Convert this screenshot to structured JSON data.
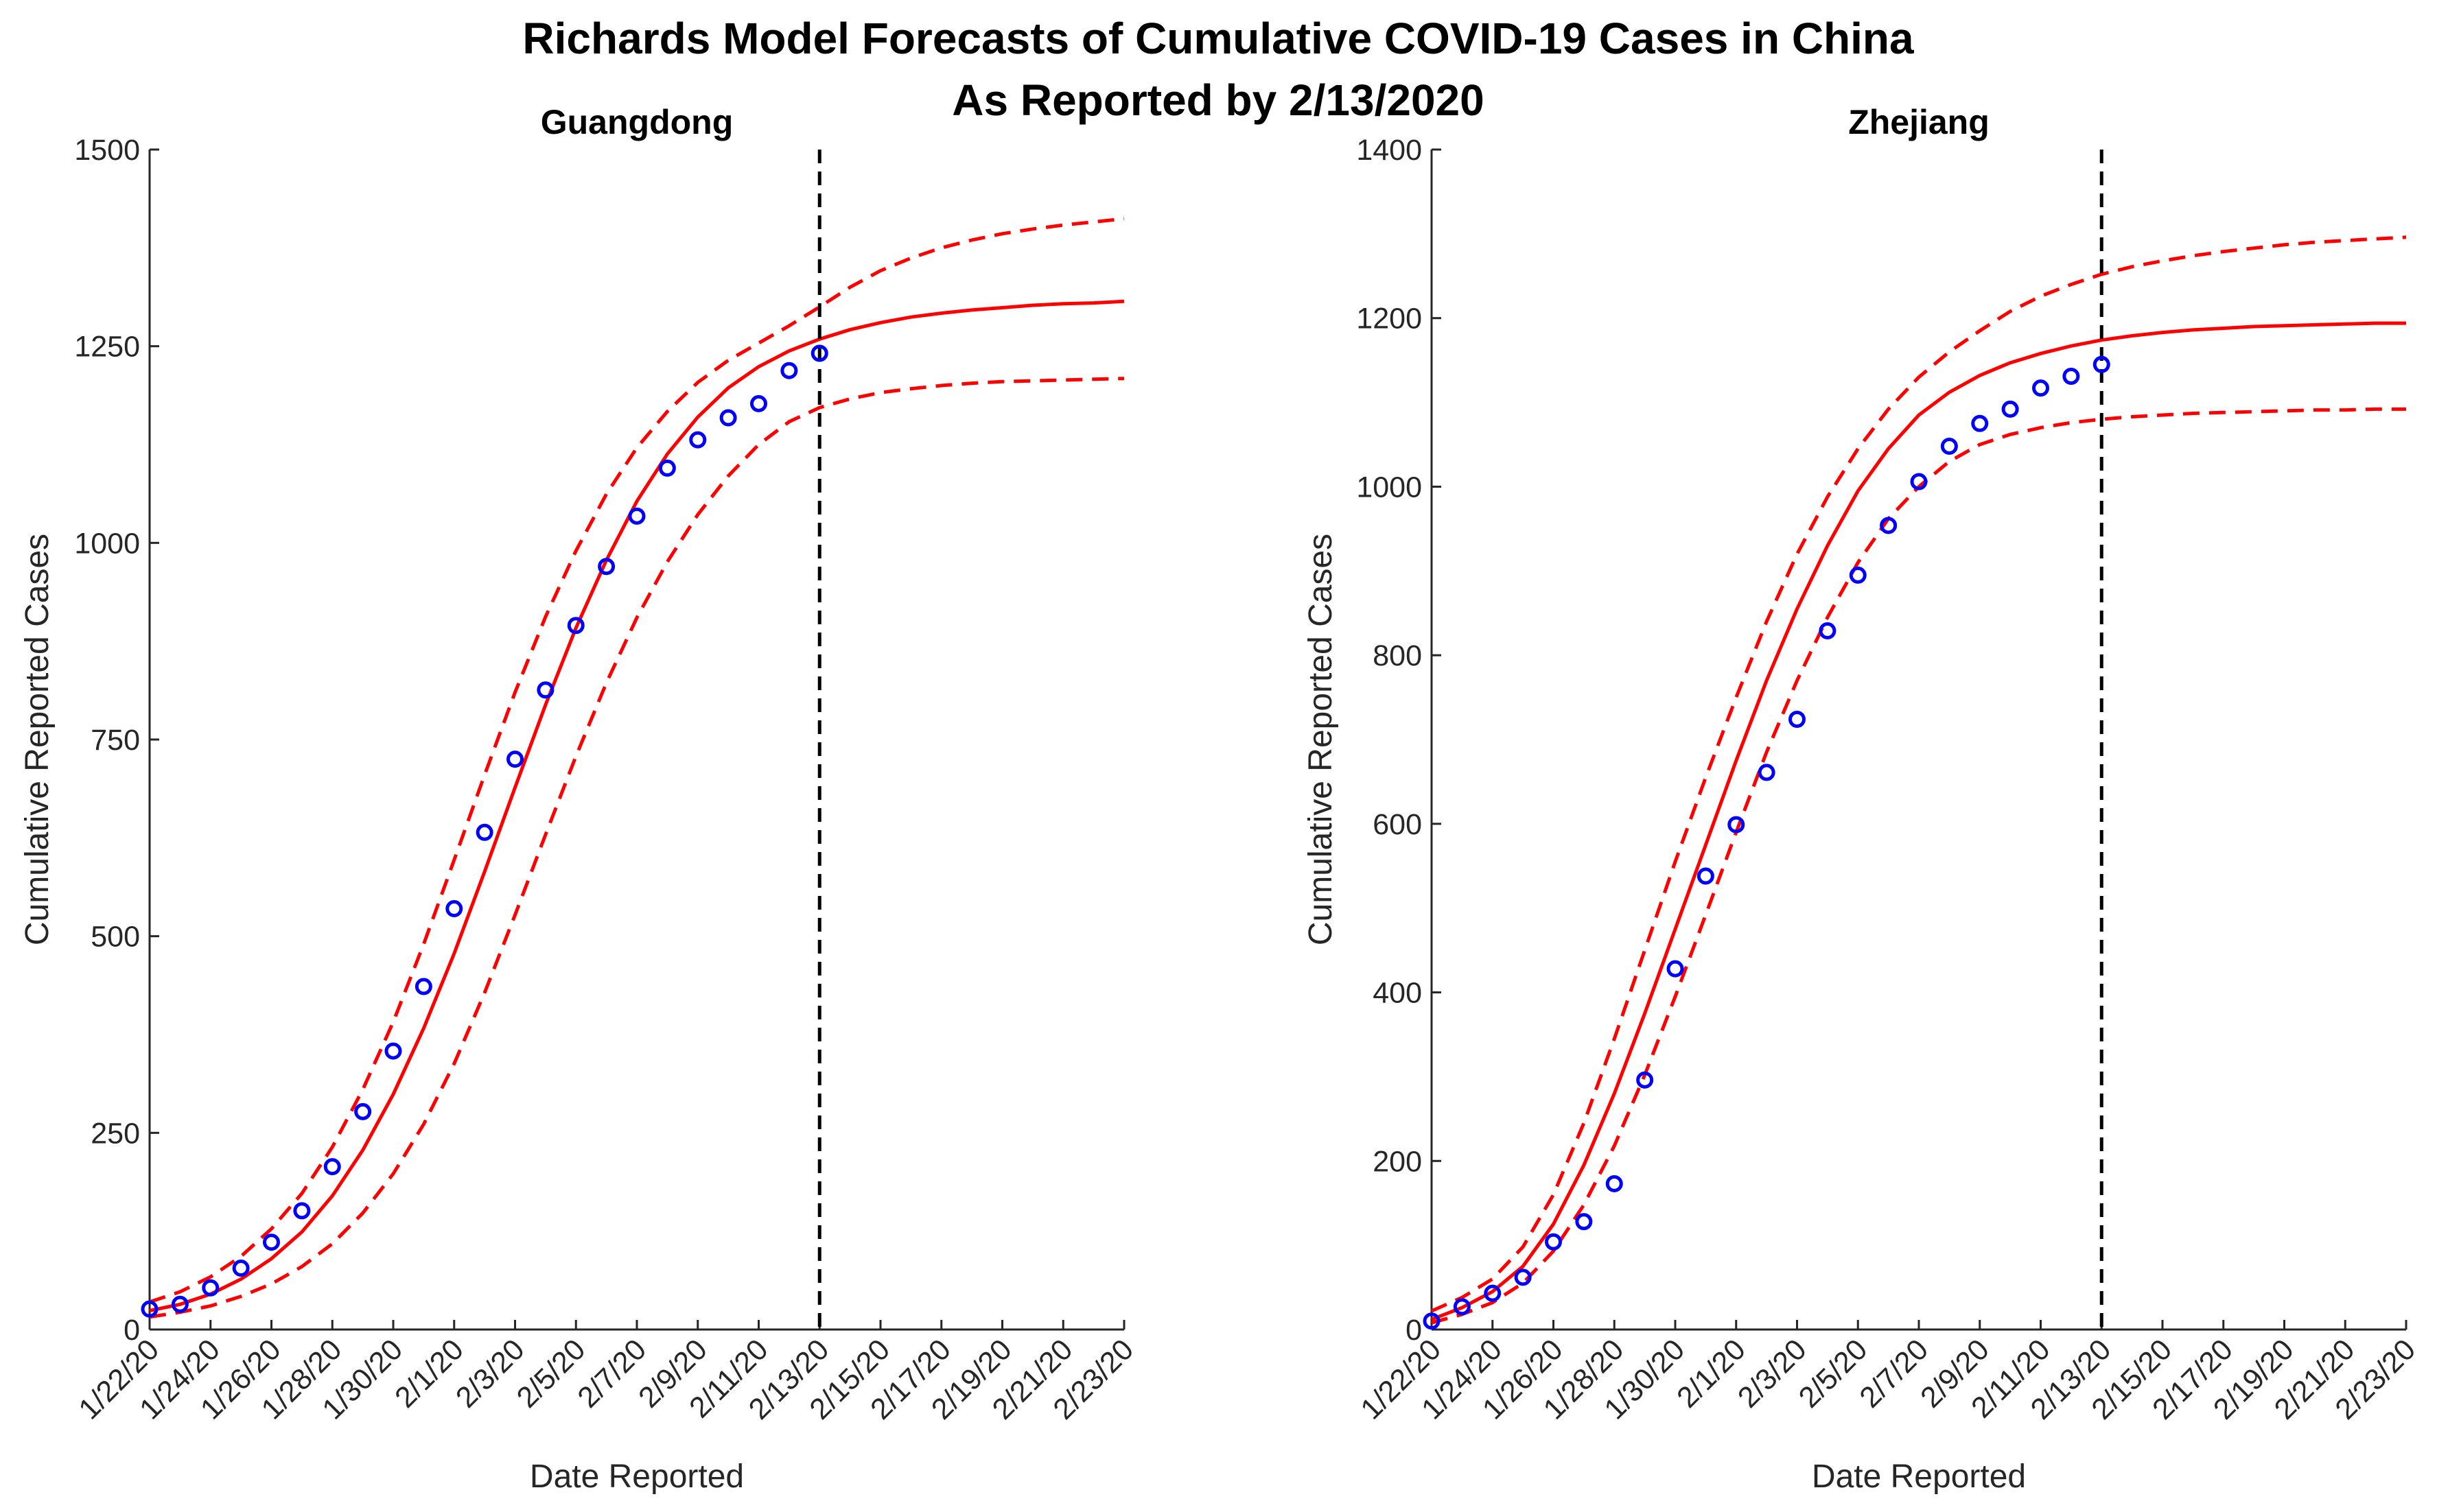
{
  "figure": {
    "title_line1": "Richards Model Forecasts of Cumulative COVID-19 Cases in China",
    "title_line2": "As Reported by 2/13/2020"
  },
  "colors": {
    "fit": "#ff0000",
    "data": "#0000ff",
    "cutoff": "#000000"
  },
  "chart_data": [
    {
      "type": "line",
      "title": "Guangdong",
      "xlabel": "Date Reported",
      "ylabel": "Cumulative Reported Cases",
      "dates": [
        "1/22/20",
        "1/23/20",
        "1/24/20",
        "1/25/20",
        "1/26/20",
        "1/27/20",
        "1/28/20",
        "1/29/20",
        "1/30/20",
        "1/31/20",
        "2/1/20",
        "2/2/20",
        "2/3/20",
        "2/4/20",
        "2/5/20",
        "2/6/20",
        "2/7/20",
        "2/8/20",
        "2/9/20",
        "2/10/20",
        "2/11/20",
        "2/12/20",
        "2/13/20",
        "2/14/20",
        "2/15/20",
        "2/16/20",
        "2/17/20",
        "2/18/20",
        "2/19/20",
        "2/20/20",
        "2/21/20",
        "2/22/20",
        "2/23/20"
      ],
      "tick_labels": [
        "1/22/20",
        "1/24/20",
        "1/26/20",
        "1/28/20",
        "1/30/20",
        "2/1/20",
        "2/3/20",
        "2/5/20",
        "2/7/20",
        "2/9/20",
        "2/11/20",
        "2/13/20",
        "2/15/20",
        "2/17/20",
        "2/19/20",
        "2/21/20",
        "2/23/20"
      ],
      "y_ticks": [
        0,
        250,
        500,
        750,
        1000,
        1250,
        1500
      ],
      "ylim": [
        0,
        1500
      ],
      "cutoff_index": 22,
      "observed": [
        26,
        32,
        53,
        78,
        111,
        151,
        207,
        277,
        354,
        436,
        535,
        632,
        725,
        813,
        895,
        970,
        1034,
        1095,
        1131,
        1159,
        1177,
        1219,
        1241
      ],
      "series": [
        {
          "name": "Richards fit",
          "style": "solid",
          "values": [
            24,
            32,
            45,
            64,
            90,
            124,
            170,
            228,
            299,
            383,
            478,
            582,
            689,
            794,
            892,
            978,
            1053,
            1113,
            1160,
            1197,
            1224,
            1244,
            1259,
            1271,
            1280,
            1287,
            1292,
            1296,
            1299,
            1302,
            1304,
            1305,
            1307
          ]
        },
        {
          "name": "Upper 95% bound",
          "style": "dashed",
          "values": [
            35,
            48,
            67,
            93,
            128,
            173,
            232,
            305,
            391,
            490,
            597,
            705,
            810,
            906,
            990,
            1062,
            1121,
            1167,
            1204,
            1232,
            1254,
            1276,
            1300,
            1325,
            1346,
            1362,
            1375,
            1385,
            1393,
            1399,
            1404,
            1408,
            1412
          ]
        },
        {
          "name": "Lower 95% bound",
          "style": "dashed",
          "values": [
            16,
            22,
            30,
            42,
            58,
            80,
            109,
            148,
            198,
            261,
            338,
            428,
            527,
            629,
            729,
            822,
            905,
            976,
            1036,
            1085,
            1125,
            1154,
            1172,
            1183,
            1191,
            1196,
            1200,
            1203,
            1205,
            1206,
            1207,
            1208,
            1209
          ]
        }
      ]
    },
    {
      "type": "line",
      "title": "Zhejiang",
      "xlabel": "Date Reported",
      "ylabel": "Cumulative Reported Cases",
      "dates": [
        "1/22/20",
        "1/23/20",
        "1/24/20",
        "1/25/20",
        "1/26/20",
        "1/27/20",
        "1/28/20",
        "1/29/20",
        "1/30/20",
        "1/31/20",
        "2/1/20",
        "2/2/20",
        "2/3/20",
        "2/4/20",
        "2/5/20",
        "2/6/20",
        "2/7/20",
        "2/8/20",
        "2/9/20",
        "2/10/20",
        "2/11/20",
        "2/12/20",
        "2/13/20",
        "2/14/20",
        "2/15/20",
        "2/16/20",
        "2/17/20",
        "2/18/20",
        "2/19/20",
        "2/20/20",
        "2/21/20",
        "2/22/20",
        "2/23/20"
      ],
      "tick_labels": [
        "1/22/20",
        "1/24/20",
        "1/26/20",
        "1/28/20",
        "1/30/20",
        "2/1/20",
        "2/3/20",
        "2/5/20",
        "2/7/20",
        "2/9/20",
        "2/11/20",
        "2/13/20",
        "2/15/20",
        "2/17/20",
        "2/19/20",
        "2/21/20",
        "2/23/20"
      ],
      "y_ticks": [
        0,
        200,
        400,
        600,
        800,
        1000,
        1200,
        1400
      ],
      "ylim": [
        0,
        1400
      ],
      "cutoff_index": 22,
      "observed": [
        10,
        27,
        43,
        62,
        104,
        128,
        173,
        296,
        428,
        538,
        599,
        661,
        724,
        829,
        895,
        954,
        1006,
        1048,
        1075,
        1092,
        1117,
        1131,
        1145
      ],
      "series": [
        {
          "name": "Richards fit",
          "style": "solid",
          "values": [
            12,
            26,
            45,
            75,
            125,
            195,
            280,
            375,
            475,
            575,
            675,
            770,
            855,
            930,
            995,
            1045,
            1085,
            1112,
            1132,
            1147,
            1158,
            1167,
            1174,
            1179,
            1183,
            1186,
            1188,
            1190,
            1191,
            1192,
            1193,
            1194,
            1194
          ]
        },
        {
          "name": "Upper 95% bound",
          "style": "dashed",
          "values": [
            22,
            38,
            60,
            98,
            160,
            245,
            345,
            450,
            555,
            655,
            750,
            840,
            920,
            988,
            1045,
            1092,
            1130,
            1160,
            1185,
            1208,
            1226,
            1240,
            1252,
            1261,
            1268,
            1274,
            1279,
            1283,
            1287,
            1290,
            1292,
            1294,
            1296
          ]
        },
        {
          "name": "Lower 95% bound",
          "style": "dashed",
          "values": [
            8,
            18,
            32,
            55,
            93,
            148,
            218,
            302,
            395,
            492,
            590,
            685,
            770,
            845,
            910,
            962,
            1000,
            1030,
            1050,
            1062,
            1070,
            1076,
            1080,
            1083,
            1085,
            1087,
            1088,
            1089,
            1090,
            1091,
            1091,
            1092,
            1092
          ]
        }
      ]
    }
  ]
}
